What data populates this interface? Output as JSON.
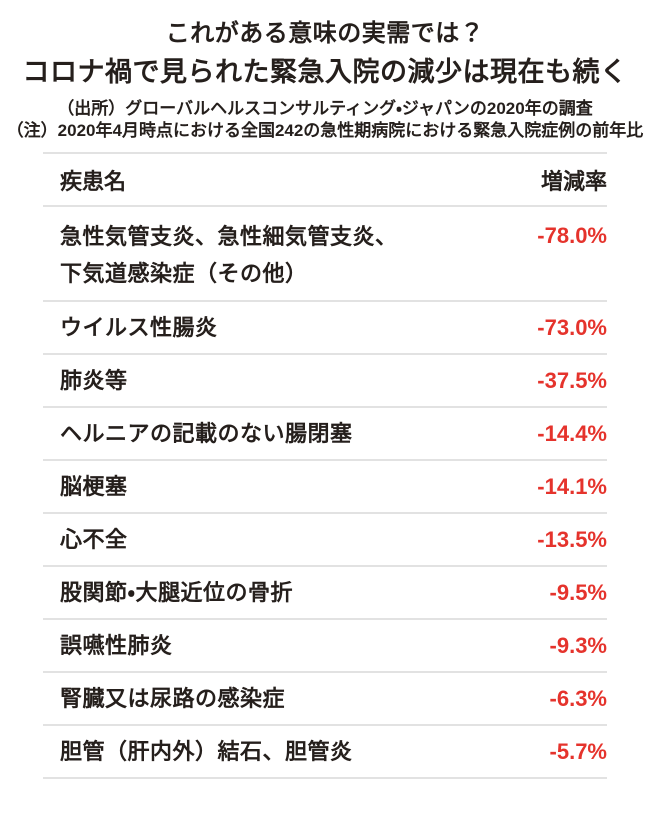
{
  "page": {
    "title_line1": "これがある意味の実需では？",
    "title_line2": "コロナ禍で見られた緊急入院の減少は現在も続く",
    "source_note": "（出所）グローバルヘルスコンサルティング・ジャパンの2020年の調査",
    "method_note": "（注）2020年4月時点における全国242の急性期病院における緊急入院症例の前年比"
  },
  "table": {
    "col_disease": "疾患名",
    "col_rate": "増減率",
    "rows": [
      {
        "disease": "急性気管支炎、急性細気管支炎、\n下気道感染症（その他）",
        "rate": "-78.0%"
      },
      {
        "disease": "ウイルス性腸炎",
        "rate": "-73.0%"
      },
      {
        "disease": "肺炎等",
        "rate": "-37.5%"
      },
      {
        "disease": "ヘルニアの記載のない腸閉塞",
        "rate": "-14.4%"
      },
      {
        "disease": "脳梗塞",
        "rate": "-14.1%"
      },
      {
        "disease": "心不全",
        "rate": "-13.5%"
      },
      {
        "disease": "股関節・大腿近位の骨折",
        "rate": "-9.5%"
      },
      {
        "disease": "誤嚥性肺炎",
        "rate": "-9.3%"
      },
      {
        "disease": "腎臓又は尿路の感染症",
        "rate": "-6.3%"
      },
      {
        "disease": "胆管（肝内外）結石、胆管炎",
        "rate": "-5.7%"
      }
    ]
  },
  "colors": {
    "text_black": "#251f1c",
    "rate_red": "#e5332c",
    "divider_gray": "#e2e2e2",
    "background": "#ffffff"
  },
  "chart_data": {
    "type": "table",
    "title": "これがある意味の実需では？ コロナ禍で見られた緊急入院の減少は現在も続く",
    "columns": [
      "疾患名",
      "増減率"
    ],
    "categories": [
      "急性気管支炎、急性細気管支炎、下気道感染症（その他）",
      "ウイルス性腸炎",
      "肺炎等",
      "ヘルニアの記載のない腸閉塞",
      "脳梗塞",
      "心不全",
      "股関節・大腿近位の骨折",
      "誤嚥性肺炎",
      "腎臓又は尿路の感染症",
      "胆管（肝内外）結石、胆管炎"
    ],
    "values_percent": [
      -78.0,
      -73.0,
      -37.5,
      -14.4,
      -14.1,
      -13.5,
      -9.5,
      -9.3,
      -6.3,
      -5.7
    ],
    "source": "グローバルヘルスコンサルティング・ジャパンの2020年の調査",
    "note": "2020年4月時点における全国242の急性期病院における緊急入院症例の前年比",
    "value_color": "#e5332c",
    "grid": "horizontal-dividers",
    "legend": "none"
  }
}
